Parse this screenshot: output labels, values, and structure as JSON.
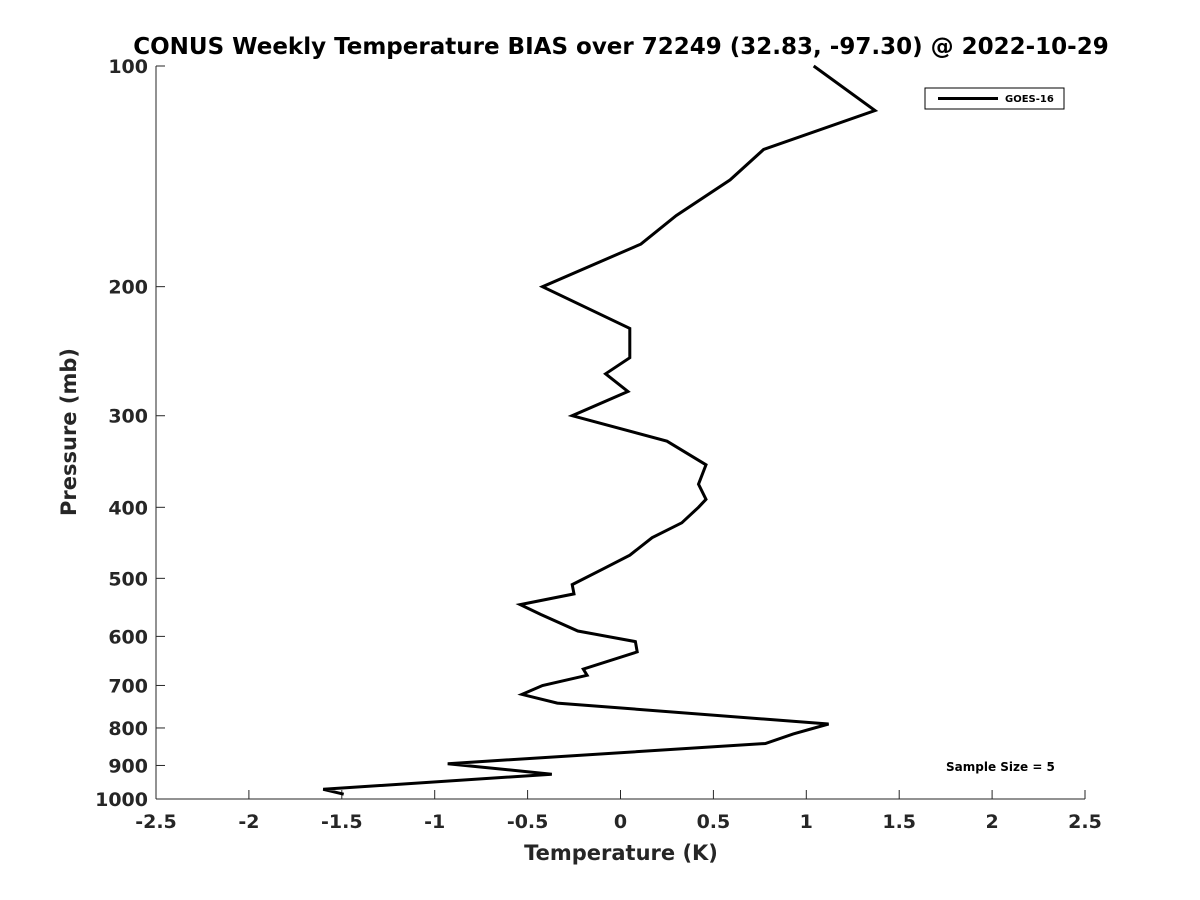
{
  "chart_data": {
    "type": "line",
    "title": "CONUS Weekly Temperature BIAS over 72249 (32.83, -97.30) @ 2022-10-29",
    "xlabel": "Temperature (K)",
    "ylabel": "Pressure (mb)",
    "xlim": [
      -2.5,
      2.5
    ],
    "ylim": [
      1000,
      100
    ],
    "yscale": "log",
    "xticks": [
      -2.5,
      -2,
      -1.5,
      -1,
      -0.5,
      0,
      0.5,
      1,
      1.5,
      2,
      2.5
    ],
    "xtick_labels": [
      "-2.5",
      "-2",
      "-1.5",
      "-1",
      "-0.5",
      "0",
      "0.5",
      "1",
      "1.5",
      "2",
      "2.5"
    ],
    "yticks": [
      100,
      200,
      300,
      400,
      500,
      600,
      700,
      800,
      900,
      1000
    ],
    "ytick_labels": [
      "100",
      "200",
      "300",
      "400",
      "500",
      "600",
      "700",
      "800",
      "900",
      "1000"
    ],
    "grid": false,
    "legend_position": "top-right",
    "annotation": "Sample Size = 5",
    "series": [
      {
        "name": "GOES-16",
        "color": "#000000",
        "points": [
          [
            1.04,
            100
          ],
          [
            1.37,
            115
          ],
          [
            0.77,
            130
          ],
          [
            0.59,
            143
          ],
          [
            0.3,
            160
          ],
          [
            0.11,
            175
          ],
          [
            -0.42,
            200
          ],
          [
            0.05,
            228
          ],
          [
            0.05,
            250
          ],
          [
            -0.08,
            263
          ],
          [
            0.04,
            278
          ],
          [
            -0.26,
            300
          ],
          [
            0.25,
            325
          ],
          [
            0.46,
            350
          ],
          [
            0.42,
            372
          ],
          [
            0.46,
            390
          ],
          [
            0.42,
            400
          ],
          [
            0.33,
            420
          ],
          [
            0.17,
            440
          ],
          [
            0.05,
            465
          ],
          [
            -0.09,
            485
          ],
          [
            -0.26,
            510
          ],
          [
            -0.25,
            525
          ],
          [
            -0.54,
            543
          ],
          [
            -0.43,
            560
          ],
          [
            -0.23,
            590
          ],
          [
            0.08,
            610
          ],
          [
            0.09,
            630
          ],
          [
            -0.2,
            665
          ],
          [
            -0.18,
            678
          ],
          [
            -0.42,
            700
          ],
          [
            -0.53,
            720
          ],
          [
            -0.34,
            740
          ],
          [
            1.12,
            790
          ],
          [
            0.93,
            815
          ],
          [
            0.78,
            840
          ],
          [
            -0.93,
            895
          ],
          [
            -0.37,
            925
          ],
          [
            -1.6,
            970
          ],
          [
            -1.49,
            985
          ]
        ]
      }
    ]
  }
}
